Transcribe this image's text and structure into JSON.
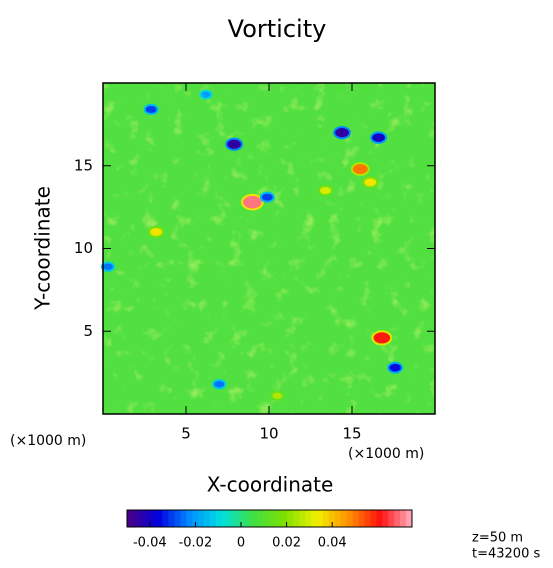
{
  "chart_data": {
    "type": "heatmap",
    "title": "Vorticity",
    "x_label": "X-coordinate",
    "y_label": "Y-coordinate",
    "x_unit": "(×1000 m)",
    "y_unit": "(×1000 m)",
    "annotations": [
      "z=50 m",
      "t=43200 s"
    ],
    "xlim": [
      0,
      20
    ],
    "ylim": [
      0,
      20
    ],
    "xticks": [
      5,
      10,
      15
    ],
    "yticks": [
      5,
      10,
      15
    ],
    "x": [
      2.9,
      6.2,
      7.9,
      14.4,
      16.6,
      15.5,
      16.1,
      13.4,
      9.0,
      9.9,
      3.2,
      0.3,
      16.8,
      17.6,
      7.0,
      10.5
    ],
    "y": [
      18.4,
      19.3,
      16.3,
      17.0,
      16.7,
      14.8,
      14.0,
      13.5,
      12.8,
      13.1,
      11.0,
      8.9,
      4.6,
      2.8,
      1.8,
      1.1
    ],
    "values": [
      -0.03,
      -0.02,
      -0.045,
      -0.045,
      -0.04,
      0.05,
      0.035,
      0.03,
      0.07,
      -0.03,
      0.035,
      -0.025,
      0.06,
      -0.035,
      -0.025,
      0.025
    ],
    "clim": [
      -0.05,
      0.075
    ],
    "cticks": [
      -0.04,
      -0.02,
      0,
      0.02,
      0.04
    ],
    "colormap": [
      "#4b0082",
      "#0000e0",
      "#0090ff",
      "#00e0e0",
      "#40e040",
      "#80e000",
      "#f0f000",
      "#ff9000",
      "#ff1010",
      "#ffb0c0"
    ]
  }
}
